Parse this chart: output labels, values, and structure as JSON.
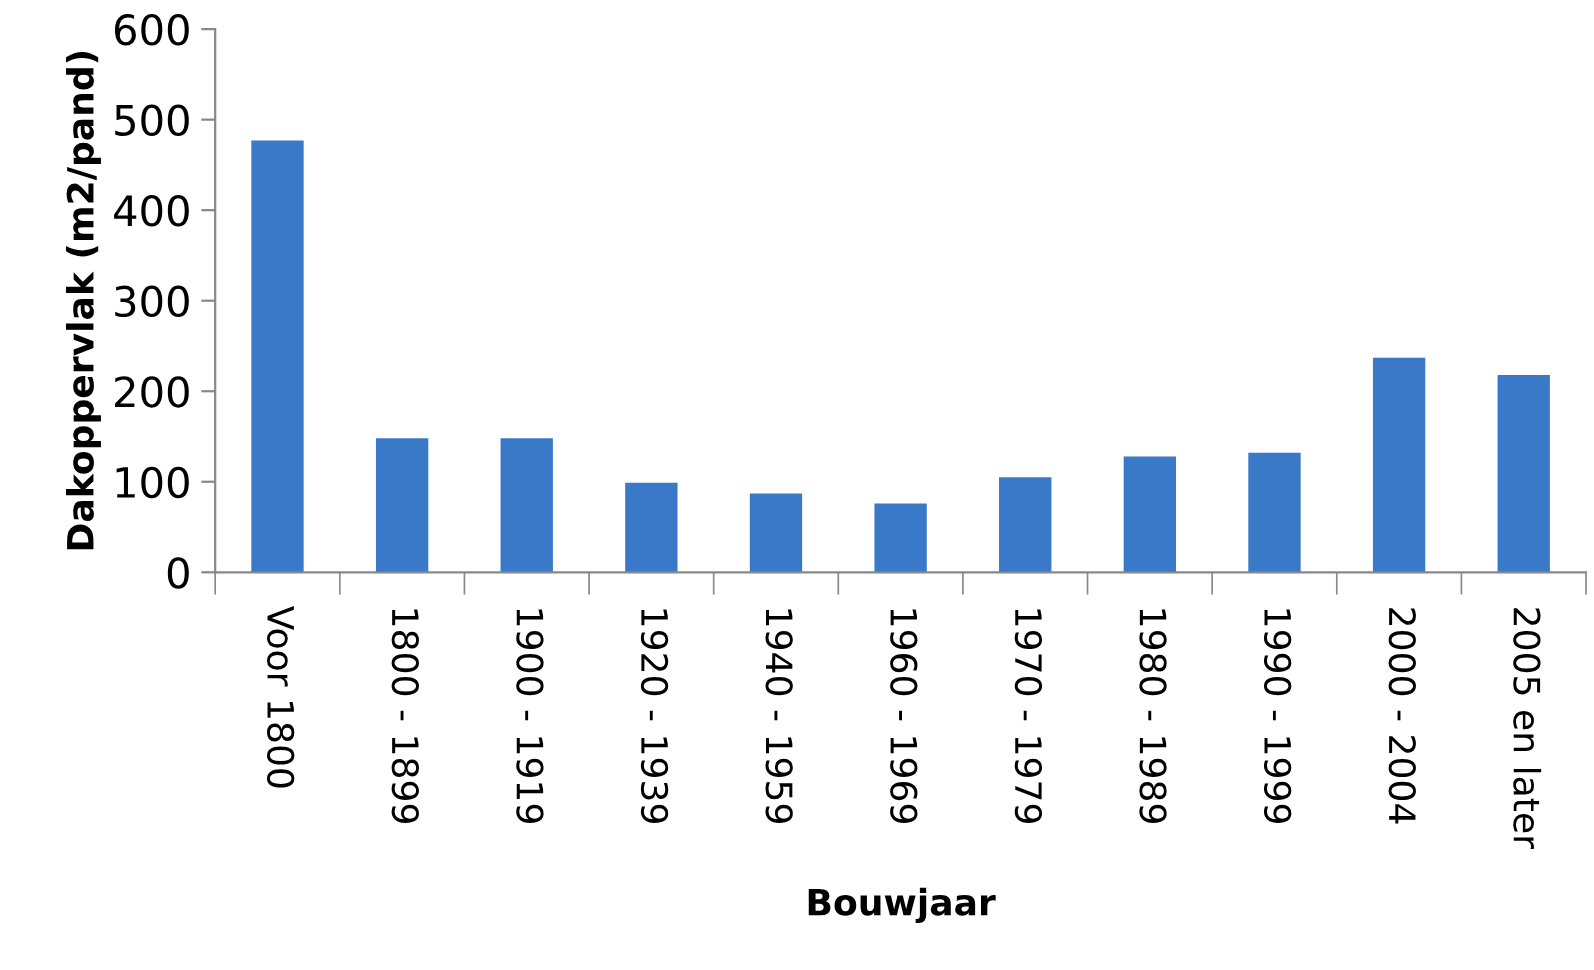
{
  "chart_data": {
    "type": "bar",
    "xlabel": "Bouwjaar",
    "ylabel": "Dakoppervlak (m2/pand)",
    "categories": [
      "Voor 1800",
      "1800 - 1899",
      "1900 - 1919",
      "1920 - 1939",
      "1940 - 1959",
      "1960 - 1969",
      "1970 - 1979",
      "1980 - 1989",
      "1990 - 1999",
      "2000 - 2004",
      "2005 en later"
    ],
    "values": [
      477,
      148,
      148,
      99,
      87,
      76,
      105,
      128,
      132,
      237,
      218
    ],
    "color": "#3a78c8",
    "ylim": [
      0,
      600
    ],
    "yticks": [
      0,
      100,
      200,
      300,
      400,
      500,
      600
    ],
    "grid": false,
    "legend": false
  }
}
